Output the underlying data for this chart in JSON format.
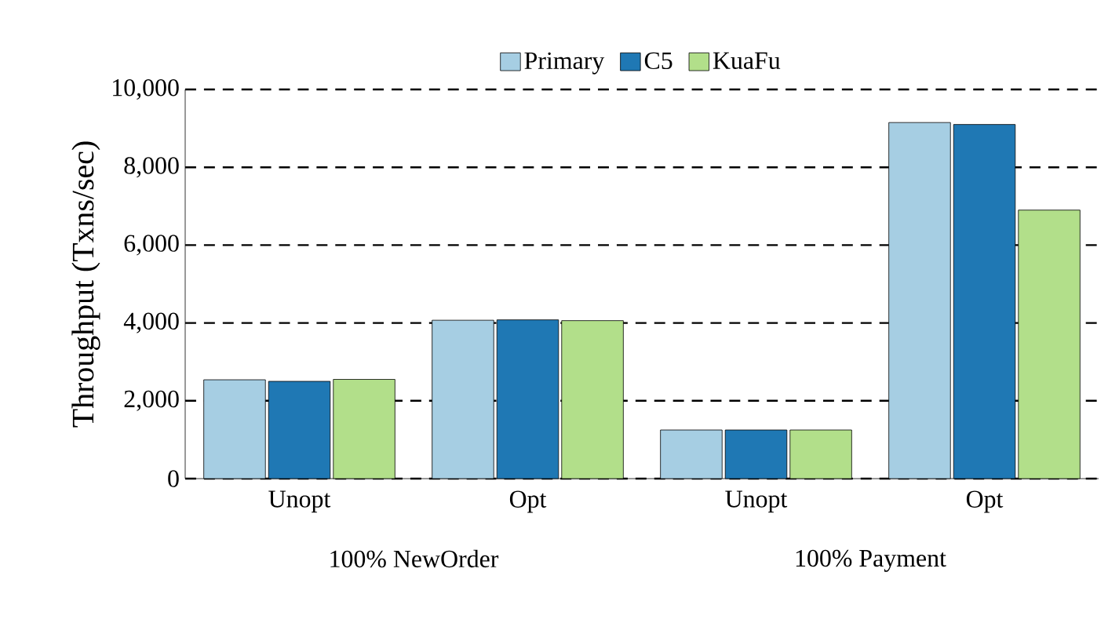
{
  "chart_data": {
    "type": "bar",
    "ylabel": "Throughput (Txns/sec)",
    "categories": [
      "Unopt",
      "Opt",
      "Unopt",
      "Opt"
    ],
    "series": [
      {
        "name": "Primary",
        "color": "#a6cee3",
        "values": [
          2540,
          4070,
          1250,
          9150
        ]
      },
      {
        "name": "C5",
        "color": "#1f78b4",
        "values": [
          2500,
          4080,
          1250,
          9100
        ]
      },
      {
        "name": "KuaFu",
        "color": "#b2df8a",
        "values": [
          2550,
          4060,
          1250,
          6900
        ]
      }
    ],
    "ylim": [
      0,
      10000
    ],
    "yticks": [
      {
        "value": 0,
        "label": "0"
      },
      {
        "value": 2000,
        "label": "2,000"
      },
      {
        "value": 4000,
        "label": "4,000"
      },
      {
        "value": 6000,
        "label": "6,000"
      },
      {
        "value": 8000,
        "label": "8,000"
      },
      {
        "value": 10000,
        "label": "10,000"
      }
    ],
    "annotations": [
      "100% NewOrder",
      "100% Payment"
    ],
    "grid": "y",
    "legend": "top"
  }
}
